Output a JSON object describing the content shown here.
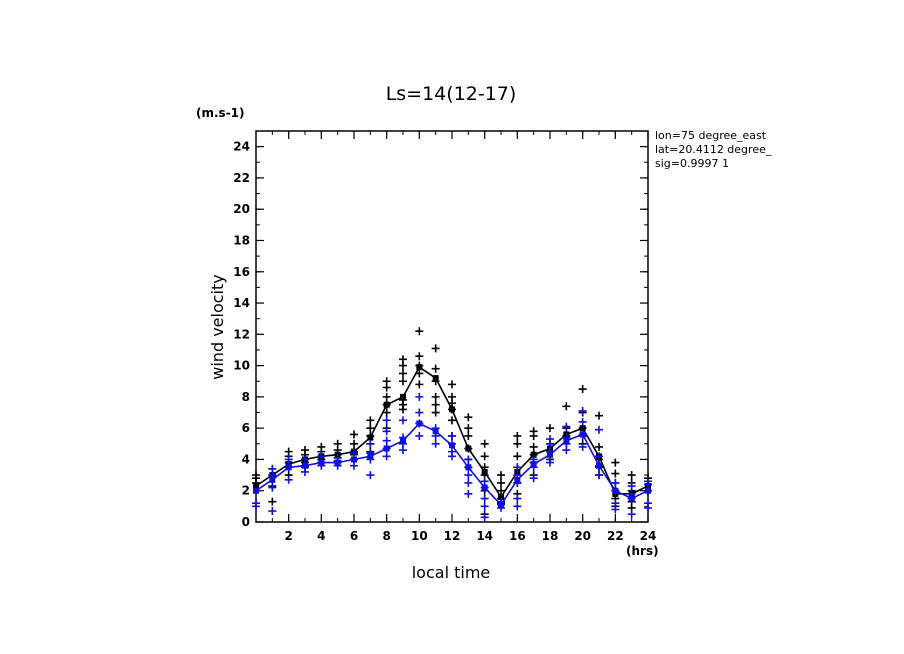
{
  "chart_data": {
    "type": "line",
    "title": "Ls=14(12-17)",
    "xlabel": "local time",
    "ylabel": "wind velocity",
    "x_unit": "(hrs)",
    "y_unit": "(m.s-1)",
    "xlim": [
      0,
      24
    ],
    "ylim": [
      0,
      25
    ],
    "xticks": [
      2,
      4,
      6,
      8,
      10,
      12,
      14,
      16,
      18,
      20,
      22,
      24
    ],
    "yticks": [
      0,
      2,
      4,
      6,
      8,
      10,
      12,
      14,
      16,
      18,
      20,
      22,
      24
    ],
    "grid": false,
    "annotations": [
      "lon=75 degree_east",
      "lat=20.4112 degree_",
      "sig=0.9997 1"
    ],
    "x": [
      0,
      1,
      2,
      3,
      4,
      5,
      6,
      7,
      8,
      9,
      10,
      11,
      12,
      13,
      14,
      15,
      16,
      17,
      18,
      19,
      20,
      21,
      22,
      23,
      24
    ],
    "series": [
      {
        "color": "#000000",
        "mean": [
          2.3,
          3.0,
          3.7,
          4.0,
          4.2,
          4.3,
          4.5,
          5.4,
          7.5,
          8.0,
          9.9,
          9.2,
          7.2,
          4.7,
          3.2,
          1.6,
          3.2,
          4.3,
          4.7,
          5.6,
          6.0,
          4.2,
          1.8,
          1.8,
          2.3
        ],
        "scatter": [
          [
            2.5,
            2.8,
            3.0
          ],
          [
            2.3,
            3.0,
            3.4,
            1.3
          ],
          [
            3.0,
            3.5,
            3.8,
            4.2,
            4.5
          ],
          [
            3.5,
            3.8,
            4.0,
            4.3,
            4.6
          ],
          [
            3.8,
            4.0,
            4.2,
            4.5,
            4.8
          ],
          [
            3.9,
            4.1,
            4.3,
            4.6,
            5.0
          ],
          [
            4.0,
            4.3,
            4.5,
            5.0,
            5.6
          ],
          [
            4.5,
            5.0,
            5.5,
            6.0,
            6.5
          ],
          [
            6.0,
            7.0,
            7.5,
            8.0,
            8.6,
            9.0
          ],
          [
            7.2,
            7.5,
            7.8,
            9.0,
            9.5,
            10.0,
            10.4
          ],
          [
            8.8,
            9.5,
            10.0,
            10.6,
            12.2
          ],
          [
            7.0,
            7.5,
            8.0,
            9.0,
            9.8,
            11.1
          ],
          [
            5.5,
            6.5,
            7.2,
            7.6,
            8.0,
            8.8
          ],
          [
            3.5,
            4.0,
            4.7,
            5.5,
            6.0,
            6.7
          ],
          [
            0.5,
            2.0,
            3.0,
            3.5,
            4.2,
            5.0
          ],
          [
            1.2,
            1.5,
            2.0,
            2.5,
            3.0
          ],
          [
            1.8,
            2.5,
            3.5,
            4.2,
            5.0,
            5.5
          ],
          [
            3.0,
            3.8,
            4.3,
            4.8,
            5.5,
            5.8
          ],
          [
            4.0,
            4.5,
            5.0,
            6.0
          ],
          [
            5.0,
            5.5,
            6.0,
            7.4
          ],
          [
            5.0,
            5.5,
            6.0,
            7.0,
            8.5
          ],
          [
            3.0,
            3.5,
            4.0,
            4.8,
            6.8
          ],
          [
            1.0,
            1.5,
            2.0,
            2.5,
            3.1,
            3.8
          ],
          [
            0.9,
            1.3,
            2.0,
            2.5,
            3.0
          ],
          [
            2.0,
            2.4,
            2.8
          ]
        ]
      },
      {
        "color": "#1010e0",
        "mean": [
          2.0,
          2.7,
          3.5,
          3.6,
          3.8,
          3.8,
          4.0,
          4.2,
          4.7,
          5.2,
          6.3,
          5.8,
          4.9,
          3.5,
          2.2,
          1.1,
          2.7,
          3.7,
          4.3,
          5.2,
          5.6,
          3.6,
          2.0,
          1.5,
          2.0
        ],
        "scatter": [
          [
            1.0,
            1.2
          ],
          [
            0.7,
            2.2,
            3.0,
            3.4
          ],
          [
            2.7,
            3.5,
            4.0
          ],
          [
            3.2,
            3.6,
            4.0
          ],
          [
            3.6,
            3.8,
            4.2
          ],
          [
            3.6,
            3.8,
            4.1
          ],
          [
            3.6,
            4.0,
            4.4
          ],
          [
            3.0,
            4.0,
            4.4,
            5.0
          ],
          [
            4.2,
            4.7,
            5.2,
            5.8,
            6.5
          ],
          [
            4.6,
            5.0,
            5.4,
            6.5
          ],
          [
            5.5,
            6.3,
            7.0,
            8.0
          ],
          [
            5.0,
            5.5,
            6.0
          ],
          [
            4.2,
            4.5,
            5.0,
            5.5
          ],
          [
            1.8,
            2.5,
            3.0,
            3.5,
            4.0
          ],
          [
            0.3,
            1.0,
            1.5,
            2.2,
            2.6
          ],
          [
            0.9,
            1.1,
            1.3
          ],
          [
            1.0,
            1.5,
            2.5,
            3.0,
            3.5
          ],
          [
            2.8,
            3.5,
            4.0
          ],
          [
            3.8,
            4.5,
            5.0,
            5.3
          ],
          [
            4.6,
            5.0,
            5.4,
            6.1
          ],
          [
            4.8,
            5.6,
            6.4,
            7.1
          ],
          [
            3.0,
            3.6,
            4.2,
            5.9
          ],
          [
            0.8,
            1.2,
            2.0,
            2.5
          ],
          [
            0.5,
            1.5,
            1.8,
            2.3
          ],
          [
            0.9,
            1.2,
            2.4,
            2.6
          ]
        ]
      }
    ]
  }
}
